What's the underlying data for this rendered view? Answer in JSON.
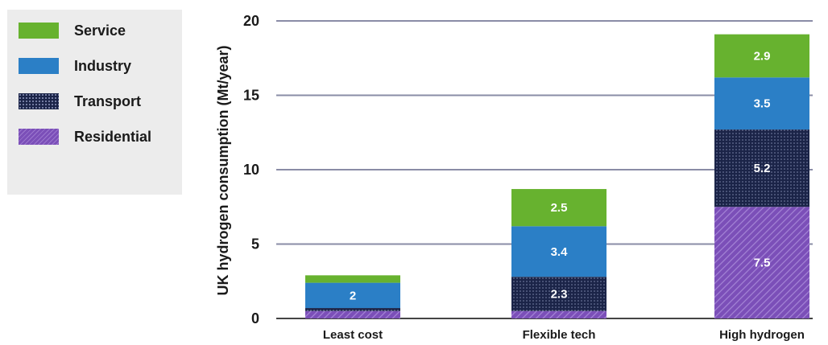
{
  "chart_data": {
    "type": "bar",
    "stacked": true,
    "categories": [
      "Least cost",
      "Flexible tech",
      "High hydrogen"
    ],
    "ylabel": "UK hydrogen consumption (Mt/year)",
    "xlabel": "",
    "ylim": [
      0,
      20
    ],
    "yticks": [
      "0",
      "5",
      "10",
      "15",
      "20"
    ],
    "grid": true,
    "legend_position": "left",
    "series": [
      {
        "name": "Residential",
        "values": [
          0.5,
          0.5,
          7.5
        ],
        "labels": [
          "",
          "",
          "7.5"
        ],
        "color": "#7b4fb8",
        "pattern": "hatch"
      },
      {
        "name": "Transport",
        "values": [
          0.2,
          2.3,
          5.2
        ],
        "labels": [
          "",
          "2.3",
          "5.2"
        ],
        "color": "#1b2448",
        "pattern": "dots"
      },
      {
        "name": "Industry",
        "values": [
          1.7,
          3.4,
          3.5
        ],
        "labels": [
          "2",
          "3.4",
          "3.5"
        ],
        "color": "#2b7fc6",
        "pattern": "solid"
      },
      {
        "name": "Service",
        "values": [
          0.5,
          2.5,
          2.9
        ],
        "labels": [
          "",
          "2.5",
          "2.9"
        ],
        "color": "#67b22f",
        "pattern": "solid"
      }
    ],
    "legend_order": [
      "Service",
      "Industry",
      "Transport",
      "Residential"
    ]
  }
}
